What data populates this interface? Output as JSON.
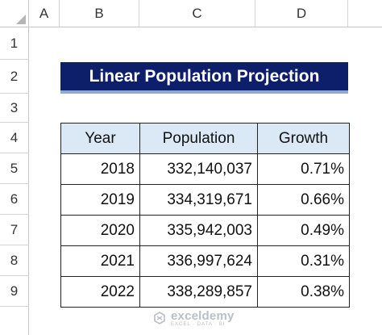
{
  "columns": [
    "A",
    "B",
    "C",
    "D"
  ],
  "rows": [
    "1",
    "2",
    "3",
    "4",
    "5",
    "6",
    "7",
    "8",
    "9"
  ],
  "title": "Linear Population Projection",
  "table": {
    "headers": [
      "Year",
      "Population",
      "Growth"
    ],
    "rows": [
      [
        "2018",
        "332,140,037",
        "0.71%"
      ],
      [
        "2019",
        "334,319,671",
        "0.66%"
      ],
      [
        "2020",
        "335,942,003",
        "0.49%"
      ],
      [
        "2021",
        "336,997,624",
        "0.31%"
      ],
      [
        "2022",
        "338,289,857",
        "0.38%"
      ]
    ]
  },
  "watermark": {
    "name": "exceldemy",
    "tagline": "EXCEL · DATA · BI"
  },
  "colors": {
    "title_bg": "#0d1f6b",
    "header_bg": "#dbe8f5"
  }
}
